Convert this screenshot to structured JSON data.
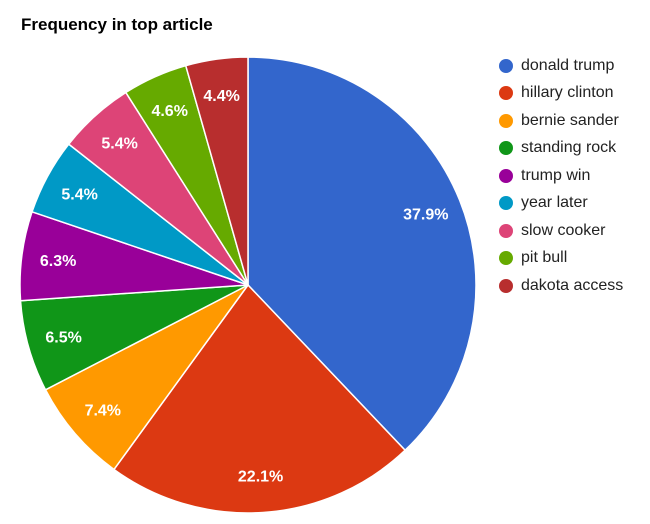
{
  "title": "Frequency in top article",
  "chart_data": {
    "type": "pie",
    "title": "Frequency in top article",
    "unit": "%",
    "legend_position": "right",
    "start_angle": 0,
    "direction": "clockwise",
    "slices": [
      {
        "label": "donald trump",
        "value": 37.9,
        "display": "37.9%",
        "color": "#3366CC"
      },
      {
        "label": "hillary clinton",
        "value": 22.1,
        "display": "22.1%",
        "color": "#DC3912"
      },
      {
        "label": "bernie sander",
        "value": 7.4,
        "display": "7.4%",
        "color": "#FF9900"
      },
      {
        "label": "standing rock",
        "value": 6.5,
        "display": "6.5%",
        "color": "#109618"
      },
      {
        "label": "trump win",
        "value": 6.3,
        "display": "6.3%",
        "color": "#990099"
      },
      {
        "label": "year later",
        "value": 5.4,
        "display": "5.4%",
        "color": "#0099C6"
      },
      {
        "label": "slow cooker",
        "value": 5.4,
        "display": "5.4%",
        "color": "#DD4477"
      },
      {
        "label": "pit bull",
        "value": 4.6,
        "display": "4.6%",
        "color": "#66AA00"
      },
      {
        "label": "dakota access",
        "value": 4.4,
        "display": "4.4%",
        "color": "#B82E2E"
      }
    ]
  }
}
